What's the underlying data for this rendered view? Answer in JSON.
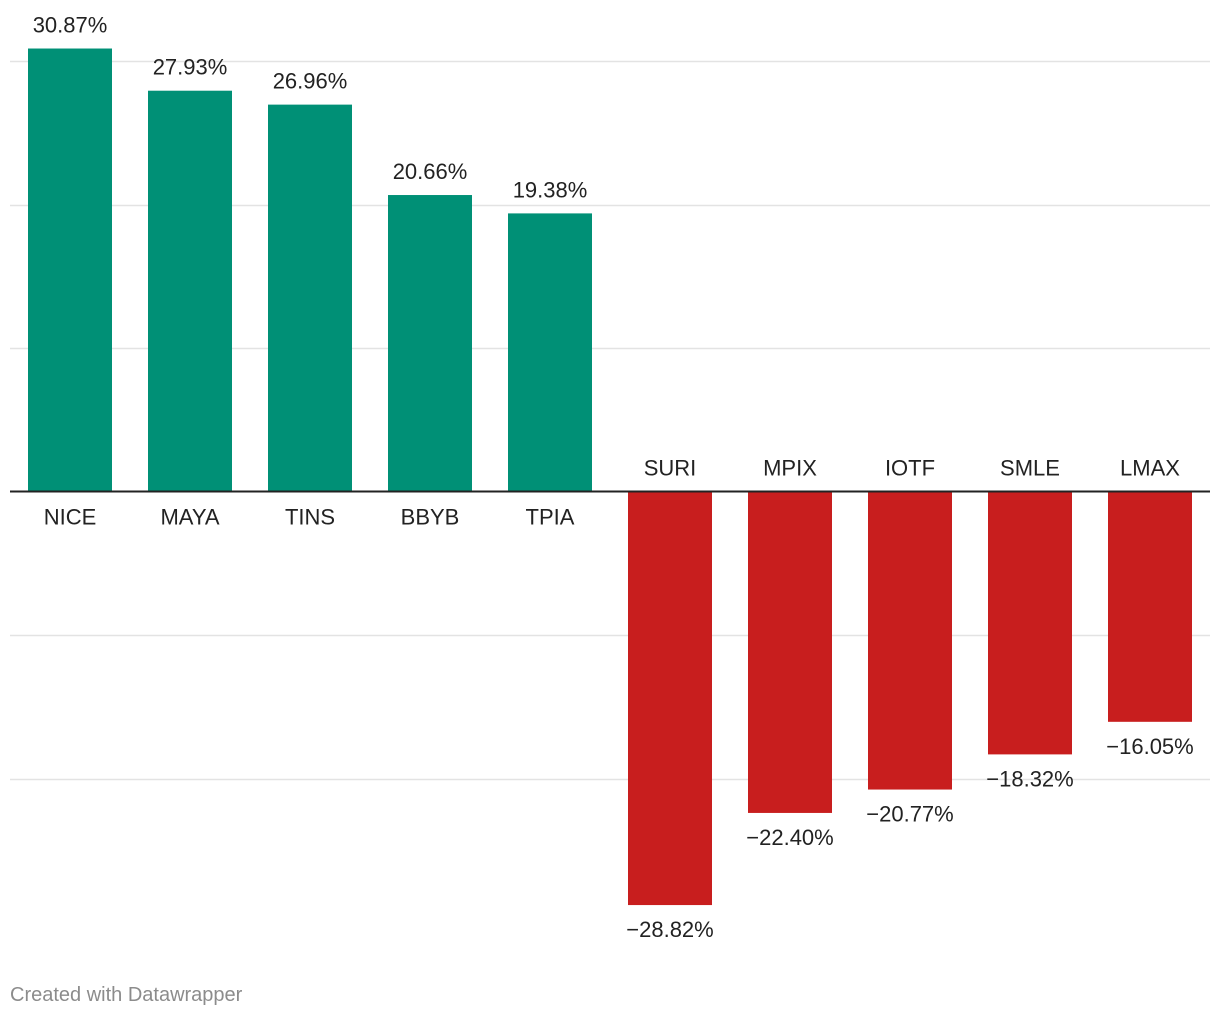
{
  "chart_data": {
    "type": "bar",
    "title": "",
    "xlabel": "",
    "ylabel": "",
    "ylim": [
      -35,
      35
    ],
    "gridlines": [
      -20,
      -10,
      10,
      20,
      30
    ],
    "grid": true,
    "categories": [
      "NICE",
      "MAYA",
      "TINS",
      "BBYB",
      "TPIA",
      "SURI",
      "MPIX",
      "IOTF",
      "SMLE",
      "LMAX"
    ],
    "values": [
      30.87,
      27.93,
      26.96,
      20.66,
      19.38,
      -28.82,
      -22.4,
      -20.77,
      -18.32,
      -16.05
    ],
    "labels": [
      "30.87%",
      "27.93%",
      "26.96%",
      "20.66%",
      "19.38%",
      "−28.82%",
      "−22.40%",
      "−20.77%",
      "−18.32%",
      "−16.05%"
    ],
    "colors": {
      "positive": "#009076",
      "negative": "#c81e1e",
      "grid": "#e3e3e3",
      "axis": "#222222",
      "text": "#222222"
    }
  },
  "footer": {
    "credit": "Created with Datawrapper"
  }
}
